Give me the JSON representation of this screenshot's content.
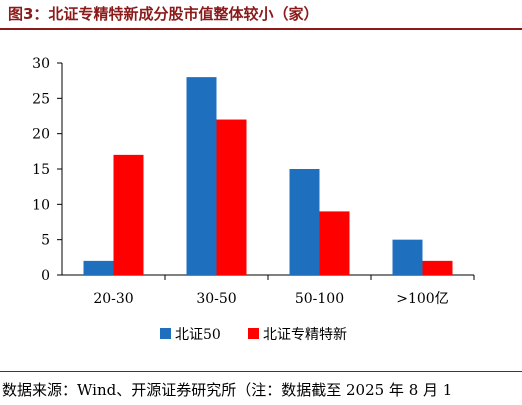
{
  "title": "图3：北证专精特新成分股市值整体较小（家）",
  "source": "数据来源：Wind、开源证券研究所（注：数据截至 2025 年 8 月 1",
  "colors": {
    "series1": "#1f6fbf",
    "series2": "#ff0000",
    "accent": "#8b1a1a"
  },
  "chart_data": {
    "type": "bar",
    "title": "",
    "xlabel": "",
    "ylabel": "",
    "categories": [
      "20-30",
      "30-50",
      "50-100",
      ">100亿"
    ],
    "series": [
      {
        "name": "北证50",
        "values": [
          2,
          28,
          15,
          5
        ]
      },
      {
        "name": "北证专精特新",
        "values": [
          17,
          22,
          9,
          2
        ]
      }
    ],
    "ylim": [
      0,
      30
    ],
    "yticks": [
      0,
      5,
      10,
      15,
      20,
      25,
      30
    ],
    "grid": false,
    "legend_position": "bottom"
  }
}
